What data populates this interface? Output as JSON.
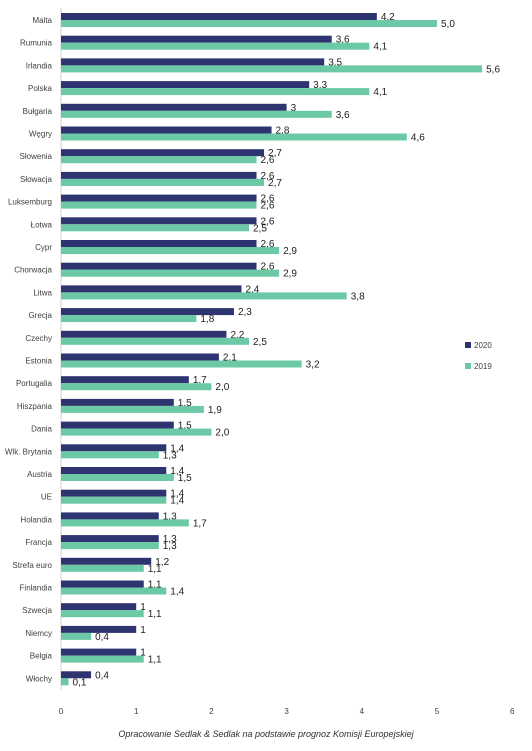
{
  "chart_data": {
    "type": "bar",
    "orientation": "horizontal",
    "categories": [
      "Malta",
      "Rumunia",
      "Irlandia",
      "Polska",
      "Bułgaria",
      "Węgry",
      "Słowenia",
      "Słowacja",
      "Luksemburg",
      "Łotwa",
      "Cypr",
      "Chorwacja",
      "Litwa",
      "Grecja",
      "Czechy",
      "Estonia",
      "Portugalia",
      "Hiszpania",
      "Dania",
      "Wlk. Brytania",
      "Austria",
      "UE",
      "Holandia",
      "Francja",
      "Strefa euro",
      "Finlandia",
      "Szwecja",
      "Niemcy",
      "Belgia",
      "Włochy"
    ],
    "series": [
      {
        "name": "2020",
        "color": "#2e3470",
        "values": [
          4.2,
          3.6,
          3.5,
          3.3,
          3.0,
          2.8,
          2.7,
          2.6,
          2.6,
          2.6,
          2.6,
          2.6,
          2.4,
          2.3,
          2.2,
          2.1,
          1.7,
          1.5,
          1.5,
          1.4,
          1.4,
          1.4,
          1.3,
          1.3,
          1.2,
          1.1,
          1.0,
          1.0,
          1.0,
          0.4
        ],
        "labels": [
          "4,2",
          "3,6",
          "3,5",
          "3,3",
          "3",
          "2,8",
          "2,7",
          "2,6",
          "2,6",
          "2,6",
          "2,6",
          "2,6",
          "2,4",
          "2,3",
          "2,2",
          "2,1",
          "1,7",
          "1,5",
          "1,5",
          "1,4",
          "1,4",
          "1,4",
          "1,3",
          "1,3",
          "1,2",
          "1,1",
          "1",
          "1",
          "1",
          "0,4"
        ]
      },
      {
        "name": "2019",
        "color": "#6cc9a5",
        "values": [
          5.0,
          4.1,
          5.6,
          4.1,
          3.6,
          4.6,
          2.6,
          2.7,
          2.6,
          2.5,
          2.9,
          2.9,
          3.8,
          1.8,
          2.5,
          3.2,
          2.0,
          1.9,
          2.0,
          1.3,
          1.5,
          1.4,
          1.7,
          1.3,
          1.1,
          1.4,
          1.1,
          0.4,
          1.1,
          0.1
        ],
        "labels": [
          "5,0",
          "4,1",
          "5,6",
          "4,1",
          "3,6",
          "4,6",
          "2,6",
          "2,7",
          "2,6",
          "2,5",
          "2,9",
          "2,9",
          "3,8",
          "1,8",
          "2,5",
          "3,2",
          "2,0",
          "1,9",
          "2,0",
          "1,3",
          "1,5",
          "1,4",
          "1,7",
          "1,3",
          "1,1",
          "1,4",
          "1,1",
          "0,4",
          "1,1",
          "0,1"
        ]
      }
    ],
    "xlim": [
      0,
      6
    ],
    "xticks": [
      "0",
      "1",
      "2",
      "3",
      "4",
      "5",
      "6"
    ],
    "grid": false,
    "legend_position": "right"
  },
  "caption": "Opracowanie Sedlak & Sedlak na podstawie prognoz Komisji Europejskiej"
}
